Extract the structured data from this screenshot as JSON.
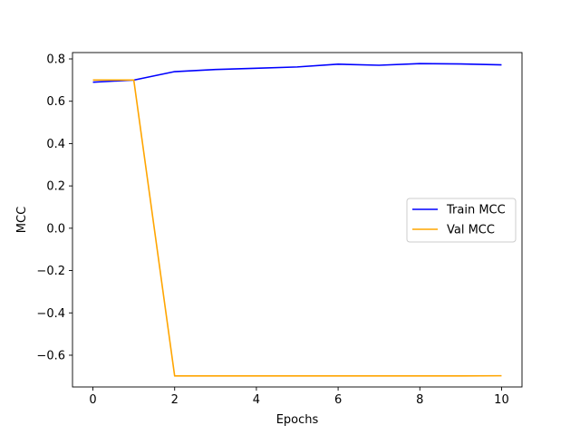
{
  "chart_data": {
    "type": "line",
    "title": "",
    "xlabel": "Epochs",
    "ylabel": "MCC",
    "xlim": [
      -0.5,
      10.5
    ],
    "ylim": [
      -0.75,
      0.83
    ],
    "x_ticks": [
      0,
      2,
      4,
      6,
      8,
      10
    ],
    "x_tick_labels": [
      "0",
      "2",
      "4",
      "6",
      "8",
      "10"
    ],
    "y_ticks": [
      -0.6,
      -0.4,
      -0.2,
      0.0,
      0.2,
      0.4,
      0.6,
      0.8
    ],
    "y_tick_labels": [
      "−0.6",
      "−0.4",
      "−0.2",
      "0.0",
      "0.2",
      "0.4",
      "0.6",
      "0.8"
    ],
    "grid": false,
    "legend_position": "center-right",
    "x": [
      0,
      1,
      2,
      3,
      4,
      5,
      6,
      7,
      8,
      9,
      10
    ],
    "series": [
      {
        "name": "Train MCC",
        "color": "#0000ff",
        "values": [
          0.69,
          0.7,
          0.74,
          0.75,
          0.756,
          0.762,
          0.775,
          0.77,
          0.778,
          0.776,
          0.772
        ]
      },
      {
        "name": "Val MCC",
        "color": "#ffa500",
        "values": [
          0.7,
          0.7,
          -0.698,
          -0.698,
          -0.698,
          -0.698,
          -0.698,
          -0.698,
          -0.698,
          -0.698,
          -0.697
        ]
      }
    ]
  }
}
